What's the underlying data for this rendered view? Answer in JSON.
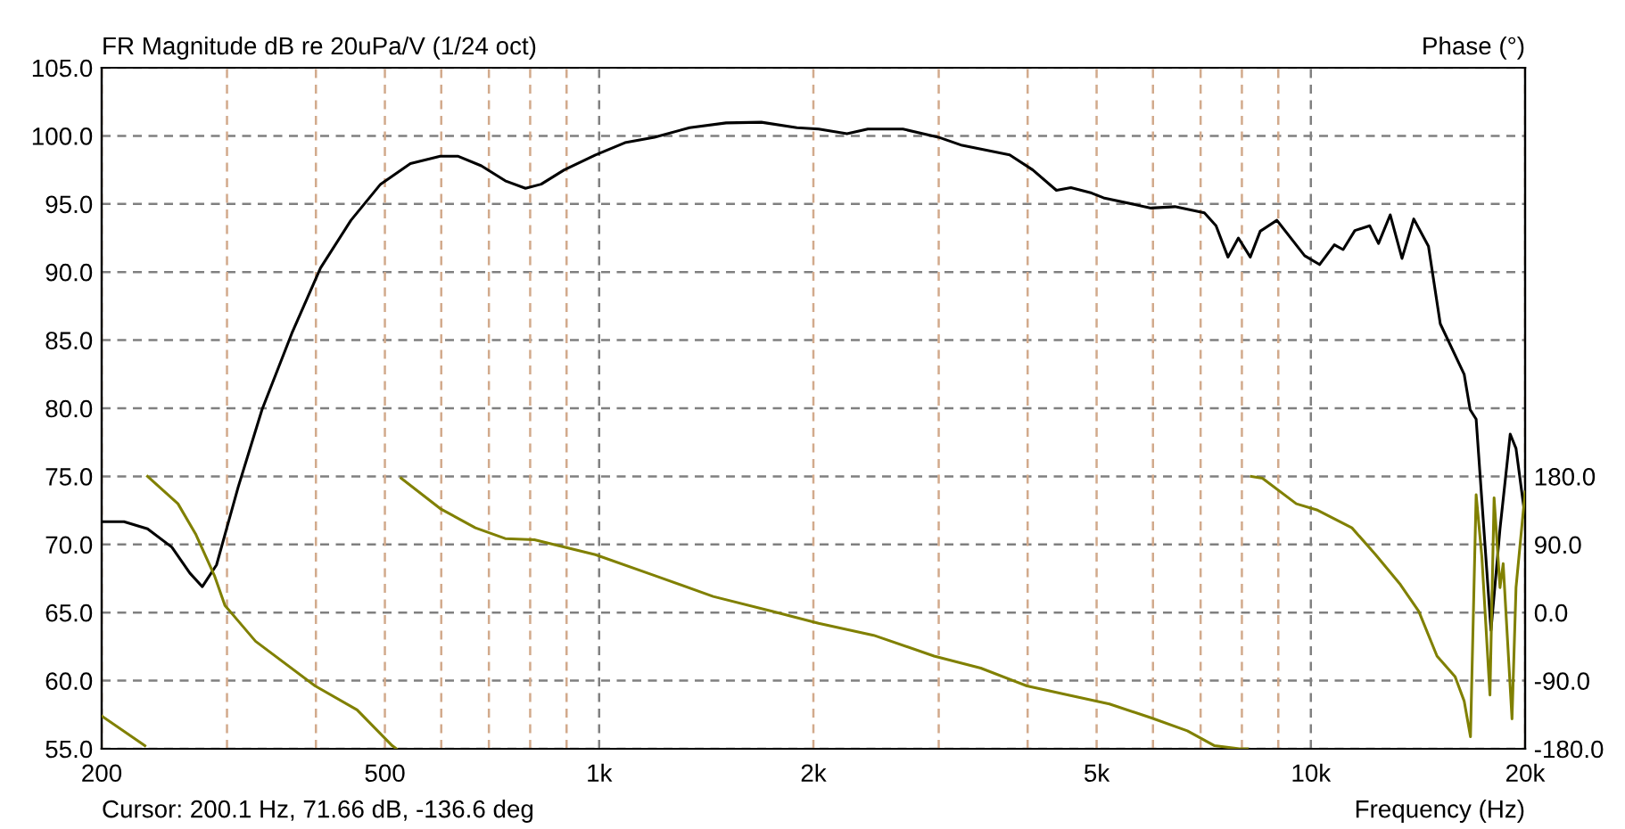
{
  "chart_data": {
    "type": "line",
    "title": "FR Magnitude dB re 20uPa/V (1/24 oct)",
    "xlabel": "Frequency (Hz)",
    "y2label": "Phase (°)",
    "annotations": [
      "Cursor: 200.1 Hz, 71.66 dB, -136.6 deg"
    ],
    "log": "x",
    "grid": true,
    "legend": false,
    "xlim": [
      200,
      20000
    ],
    "xticks": [
      200,
      {
        "value": 300,
        "label": null
      },
      {
        "value": 400,
        "label": null
      },
      500,
      {
        "value": 600,
        "label": null
      },
      {
        "value": 700,
        "label": null
      },
      {
        "value": 800,
        "label": null
      },
      {
        "value": 900,
        "label": null
      },
      {
        "value": 1000,
        "label": "1k"
      },
      {
        "value": 2000,
        "label": "2k"
      },
      {
        "value": 3000,
        "label": null
      },
      {
        "value": 4000,
        "label": null
      },
      {
        "value": 5000,
        "label": "5k"
      },
      {
        "value": 6000,
        "label": null
      },
      {
        "value": 7000,
        "label": null
      },
      {
        "value": 8000,
        "label": null
      },
      {
        "value": 9000,
        "label": null
      },
      {
        "value": 10000,
        "label": "10k"
      },
      {
        "value": 20000,
        "label": "20k"
      }
    ],
    "ylim": [
      55,
      105
    ],
    "yticks": [
      {
        "value": 55,
        "label": "55.0"
      },
      {
        "value": 60,
        "label": "60.0"
      },
      {
        "value": 65,
        "label": "65.0"
      },
      {
        "value": 70,
        "label": "70.0"
      },
      {
        "value": 75,
        "label": "75.0"
      },
      {
        "value": 80,
        "label": "80.0"
      },
      {
        "value": 85,
        "label": "85.0"
      },
      {
        "value": 90,
        "label": "90.0"
      },
      {
        "value": 95,
        "label": "95.0"
      },
      {
        "value": 100,
        "label": "100.0"
      },
      {
        "value": 105,
        "label": "105.0"
      }
    ],
    "y2lim": [
      -180,
      720
    ],
    "y2ticks": [
      {
        "value": -180,
        "label": "-180.0"
      },
      {
        "value": -90,
        "label": "-90.0"
      },
      {
        "value": 0,
        "label": "0.0"
      },
      {
        "value": 90,
        "label": "90.0"
      },
      {
        "value": 180,
        "label": "180.0"
      }
    ],
    "series": [
      {
        "color": "#000000",
        "x": [
          200,
          215,
          232,
          251,
          266,
          277,
          290,
          311,
          336,
          370,
          406,
          448,
          493,
          543,
          598,
          634,
          683,
          738,
          788,
          829,
          893,
          988,
          1087,
          1196,
          1340,
          1508,
          1690,
          1896,
          2034,
          2230,
          2385,
          2672,
          2997,
          3236,
          3774,
          4067,
          4390,
          4601,
          4920,
          5113,
          5963,
          6441,
          7086,
          7358,
          7647,
          7910,
          8220,
          8489,
          8960,
          9801,
          10285,
          10790,
          11100,
          11530,
          12096,
          12447,
          12927,
          13430,
          13950,
          14630,
          15200,
          16420,
          16740,
          17070,
          17910,
          18440,
          19060,
          19420,
          20000
        ],
        "values": [
          71.67,
          71.67,
          71.15,
          69.8,
          67.9,
          66.9,
          68.5,
          74.2,
          79.9,
          85.5,
          90.3,
          93.8,
          96.45,
          97.97,
          98.5,
          98.5,
          97.8,
          96.7,
          96.15,
          96.45,
          97.5,
          98.6,
          99.5,
          99.9,
          100.6,
          100.95,
          101.0,
          100.6,
          100.5,
          100.15,
          100.5,
          100.5,
          99.9,
          99.3,
          98.6,
          97.5,
          96.0,
          96.2,
          95.8,
          95.45,
          94.7,
          94.8,
          94.35,
          93.4,
          91.1,
          92.5,
          91.1,
          93.0,
          93.8,
          91.2,
          90.55,
          92.0,
          91.65,
          93.05,
          93.4,
          92.1,
          94.2,
          91.0,
          93.9,
          91.9,
          86.2,
          82.5,
          79.9,
          79.2,
          63.7,
          71.15,
          78.1,
          77.05,
          72.0
        ]
      },
      {
        "color": "#808000",
        "axis": "y2",
        "x": [
          200,
          230,
          231,
          232,
          256,
          271,
          288,
          298,
          329,
          399,
          457,
          512,
          519,
          520,
          527,
          598,
          670,
          738,
          811,
          988,
          1196,
          1446,
          1750,
          2034,
          2430,
          2955,
          3437,
          3991,
          4565,
          5212,
          5963,
          6706,
          7324,
          7938,
          8140,
          8141,
          8250,
          8550,
          9540,
          10190,
          11420,
          12330,
          13360,
          14180,
          15040,
          15950,
          16420,
          16760,
          17070,
          17390,
          17850,
          18090,
          18440,
          18630,
          19170,
          19420,
          20000
        ],
        "values": [
          -136.6,
          -176,
          null,
          180,
          143.8,
          104,
          49,
          9.5,
          -37.9,
          -97,
          -128.6,
          -176,
          -180,
          null,
          177.6,
          137.4,
          112,
          97.8,
          96.3,
          76.5,
          49,
          21.3,
          1.6,
          -14.2,
          -30,
          -57.5,
          -73.4,
          -97,
          -109,
          -120.8,
          -139,
          -156.3,
          -176,
          -180,
          -180,
          null,
          180,
          177.6,
          143.8,
          135.8,
          112,
          76.5,
          37,
          1.6,
          -57.5,
          -85,
          -116.8,
          -164,
          155.6,
          73,
          -109,
          151.6,
          33,
          64.6,
          -140.5,
          33,
          159.5
        ]
      }
    ]
  }
}
